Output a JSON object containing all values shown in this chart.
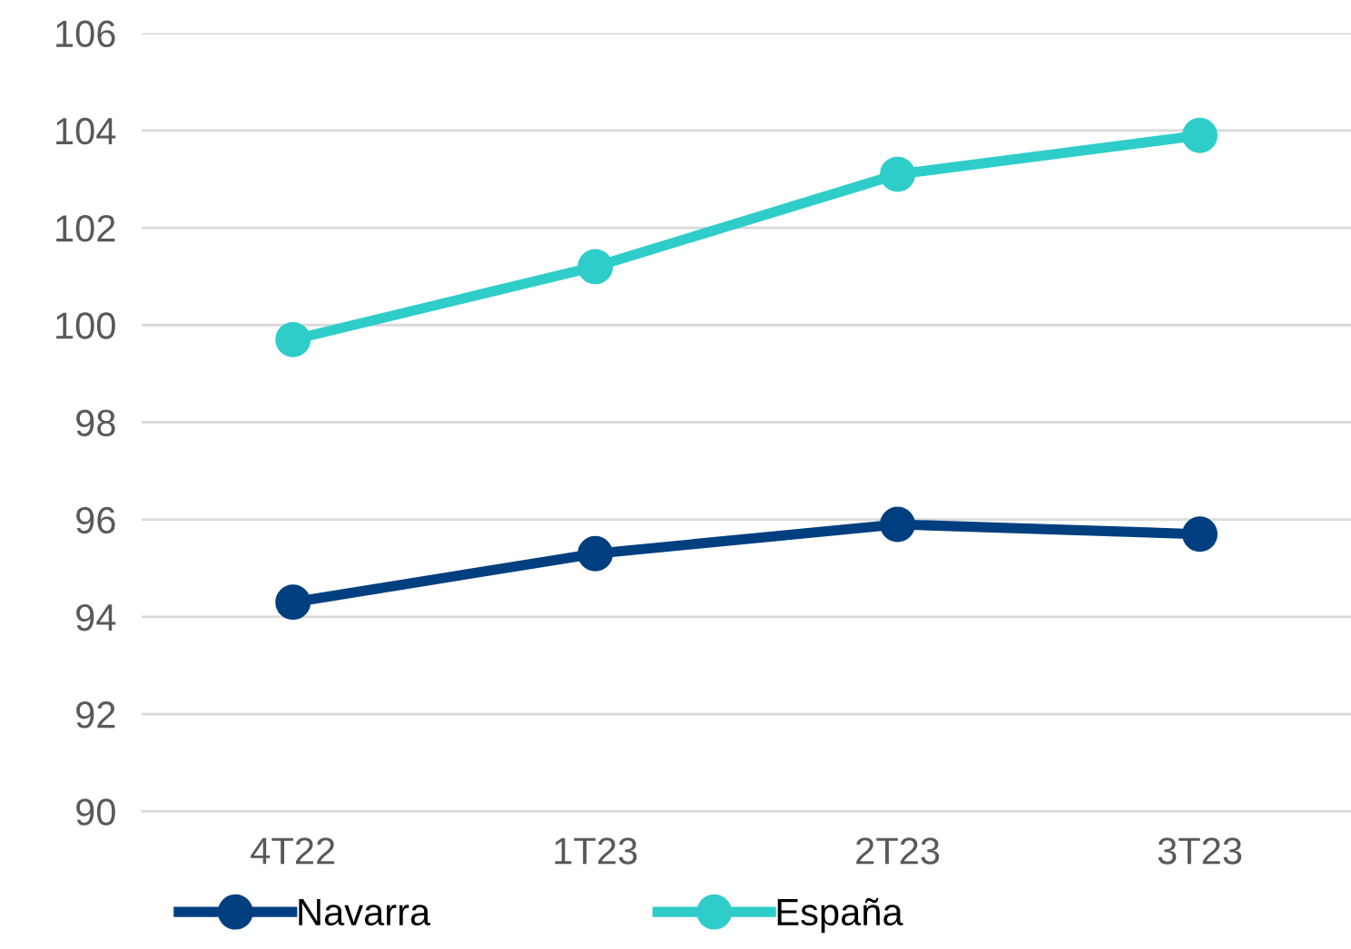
{
  "chart_data": {
    "type": "line",
    "categories": [
      "4T22",
      "1T23",
      "2T23",
      "3T23"
    ],
    "series": [
      {
        "name": "Navarra",
        "color": "#003f7f",
        "values": [
          94.3,
          95.3,
          95.9,
          95.7
        ]
      },
      {
        "name": "España",
        "color": "#2ecdc9",
        "values": [
          99.7,
          101.2,
          103.1,
          103.9
        ]
      }
    ],
    "ylim": [
      90,
      106
    ],
    "yticks": [
      90,
      92,
      94,
      96,
      98,
      100,
      102,
      104,
      106
    ],
    "grid": "y",
    "legend": "bottom",
    "marker": "circle",
    "line_style": "solid"
  }
}
